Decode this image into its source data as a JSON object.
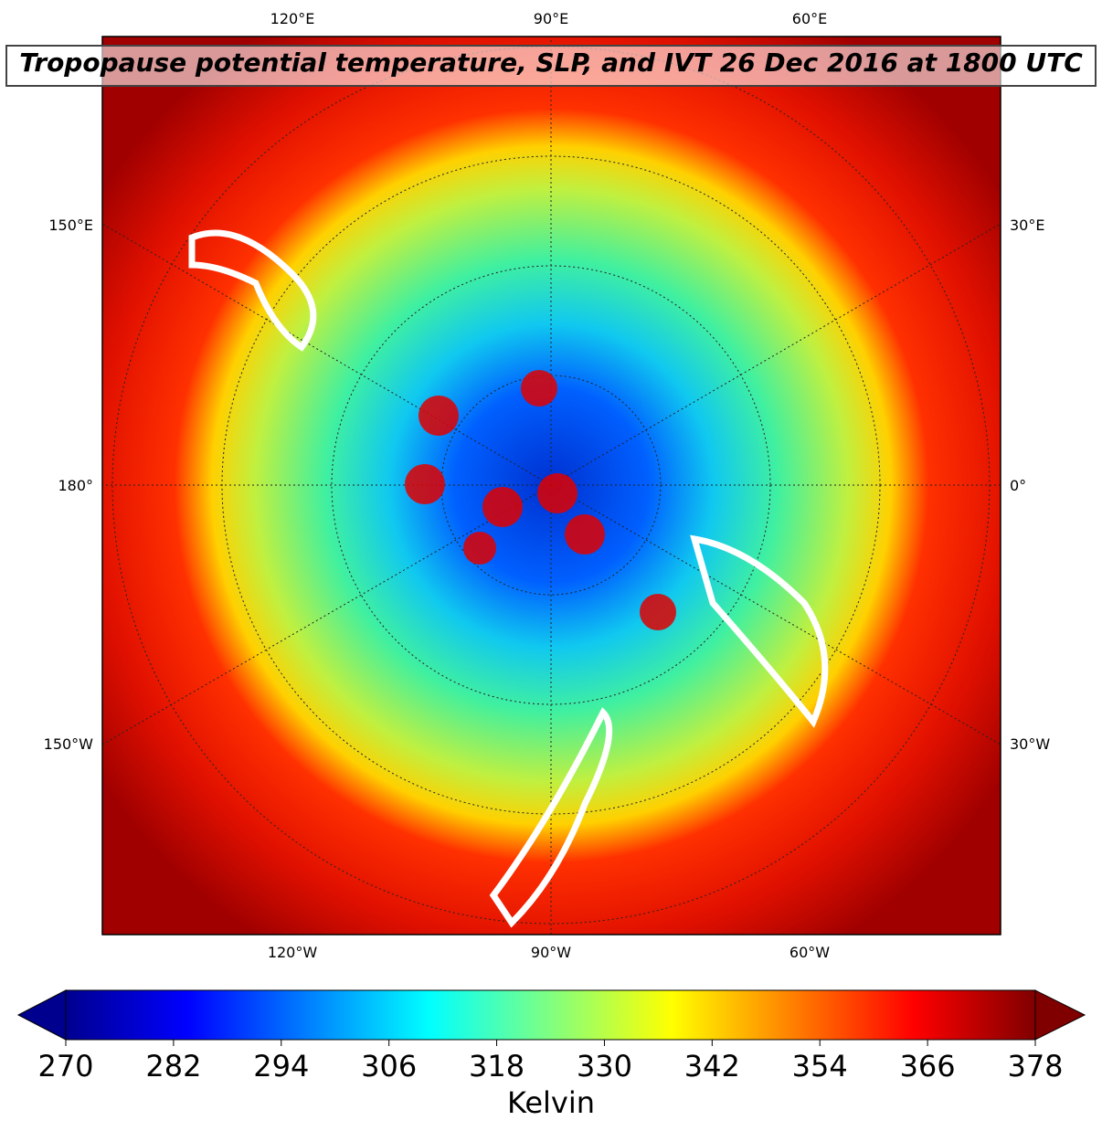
{
  "map": {
    "title": "Tropopause potential temperature, SLP, and IVT 26 Dec 2016 at 1800 UTC",
    "lon_labels_top": [
      "120°E",
      "90°E",
      "60°E"
    ],
    "lon_labels_left": [
      "150°E",
      "180°",
      "150°W"
    ],
    "lon_labels_right": [
      "30°E",
      "0°",
      "30°W"
    ],
    "lon_labels_bottom": [
      "120°W",
      "90°W",
      "60°W"
    ]
  },
  "colorbar": {
    "label": "Kelvin",
    "lim": [
      270,
      378
    ],
    "ticks": [
      270,
      282,
      294,
      306,
      318,
      330,
      342,
      354,
      366,
      378
    ]
  }
}
